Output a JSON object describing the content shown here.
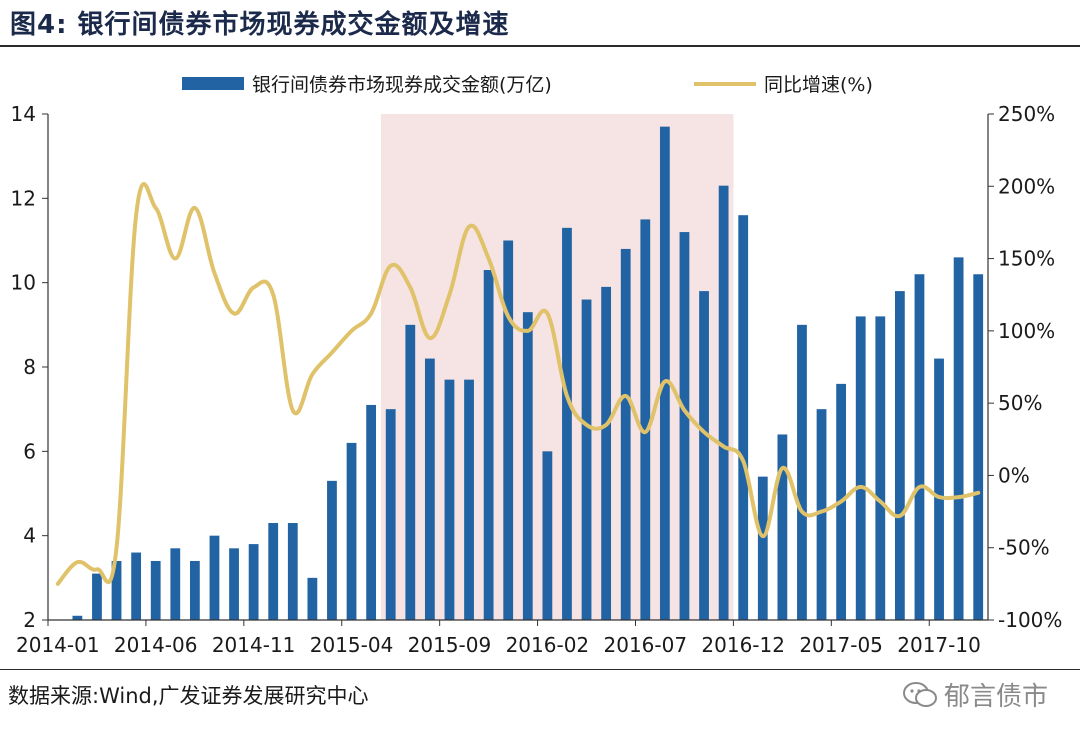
{
  "figure_title": "图4:  银行间债券市场现券成交金额及增速",
  "source_text": "数据来源:Wind,广发证券发展研究中心",
  "watermark_text": "郁言债市",
  "colors": {
    "bar": "#2264a3",
    "line": "#e0c26a",
    "shade": "#f6e3e3"
  },
  "chart_data": {
    "type": "bar",
    "legend": [
      "银行间债券市场现券成交金额(万亿)",
      "同比增速(%)"
    ],
    "left_axis": {
      "ylim": [
        2,
        14
      ],
      "ticks": [
        "2",
        "4",
        "6",
        "8",
        "10",
        "12",
        "14"
      ]
    },
    "right_axis": {
      "ylim": [
        -100,
        250
      ],
      "ticks": [
        "-100%",
        "-50%",
        "0%",
        "50%",
        "100%",
        "150%",
        "200%",
        "250%"
      ]
    },
    "x_tick_labels": [
      "2014-01",
      "2014-06",
      "2014-11",
      "2015-04",
      "2015-09",
      "2016-02",
      "2016-07",
      "2016-12",
      "2017-05",
      "2017-10"
    ],
    "x_tick_indices": [
      0,
      5,
      10,
      15,
      20,
      25,
      30,
      35,
      40,
      45
    ],
    "shaded_region": [
      "2015-06",
      "2016-11"
    ],
    "categories": [
      "2014-01",
      "2014-02",
      "2014-03",
      "2014-04",
      "2014-05",
      "2014-06",
      "2014-07",
      "2014-08",
      "2014-09",
      "2014-10",
      "2014-11",
      "2014-12",
      "2015-01",
      "2015-02",
      "2015-03",
      "2015-04",
      "2015-05",
      "2015-06",
      "2015-07",
      "2015-08",
      "2015-09",
      "2015-10",
      "2015-11",
      "2015-12",
      "2016-01",
      "2016-02",
      "2016-03",
      "2016-04",
      "2016-05",
      "2016-06",
      "2016-07",
      "2016-08",
      "2016-09",
      "2016-10",
      "2016-11",
      "2016-12",
      "2017-01",
      "2017-02",
      "2017-03",
      "2017-04",
      "2017-05",
      "2017-06",
      "2017-07",
      "2017-08",
      "2017-09",
      "2017-10",
      "2017-11",
      "2017-12"
    ],
    "series": [
      {
        "name": "银行间债券市场现券成交金额(万亿)",
        "type": "bar",
        "axis": "left",
        "values": [
          2.0,
          2.1,
          3.1,
          3.4,
          3.6,
          3.4,
          3.7,
          3.4,
          4.0,
          3.7,
          3.8,
          4.3,
          4.3,
          3.0,
          5.3,
          6.2,
          7.1,
          7.0,
          9.0,
          8.2,
          7.7,
          7.7,
          10.3,
          11.0,
          9.3,
          6.0,
          11.3,
          9.6,
          9.9,
          10.8,
          11.5,
          13.7,
          11.2,
          9.8,
          12.3,
          11.6,
          5.4,
          6.4,
          9.0,
          7.0,
          7.6,
          9.2,
          9.2,
          9.8,
          10.2,
          8.2,
          10.6,
          10.2
        ]
      },
      {
        "name": "同比增速(%)",
        "type": "line",
        "axis": "right",
        "values": [
          -75,
          -60,
          -65,
          -50,
          180,
          185,
          150,
          185,
          140,
          112,
          130,
          125,
          45,
          70,
          85,
          100,
          112,
          145,
          130,
          95,
          125,
          172,
          150,
          110,
          100,
          112,
          55,
          35,
          35,
          55,
          30,
          65,
          45,
          30,
          20,
          10,
          -42,
          5,
          -25,
          -25,
          -18,
          -8,
          -18,
          -28,
          -8,
          -15,
          -15,
          -12
        ]
      }
    ]
  }
}
